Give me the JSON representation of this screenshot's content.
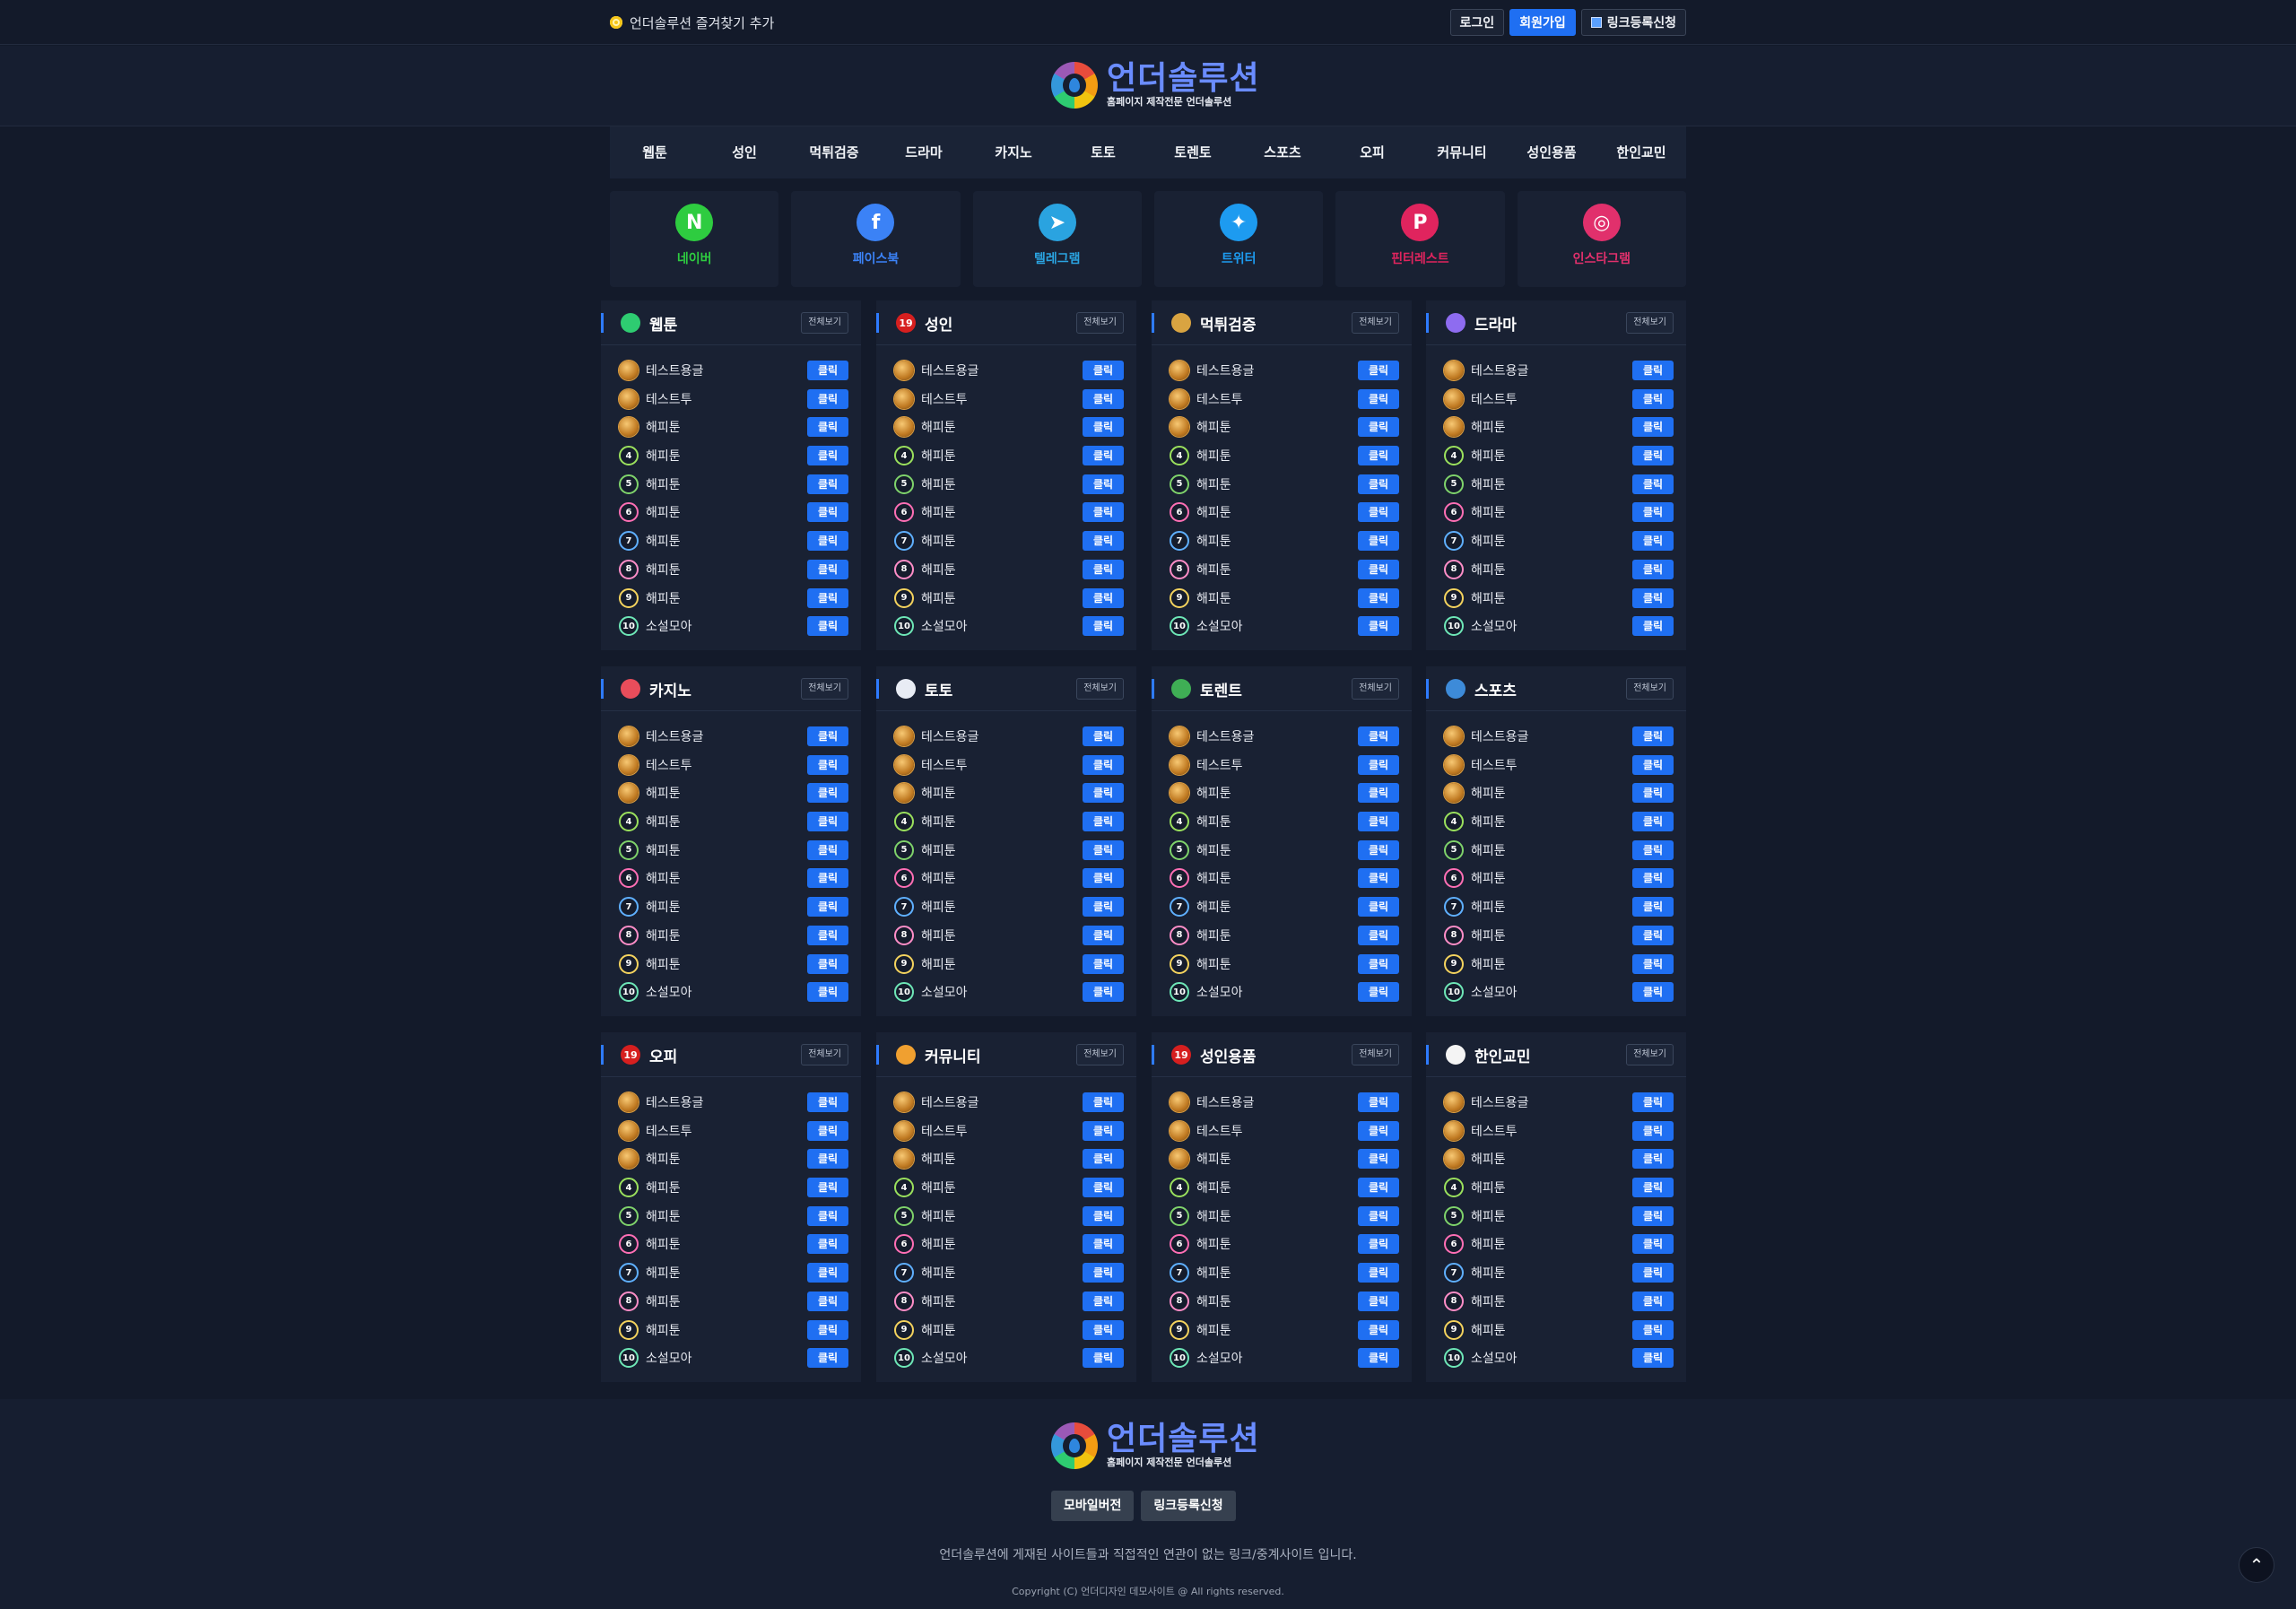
{
  "topbar": {
    "favorite_label": "언더솔루션 즐겨찾기 추가",
    "login_label": "로그인",
    "signup_label": "회원가입",
    "link_request_label": "링크등록신청"
  },
  "logo": {
    "name": "언더솔루션",
    "tagline": "홈페이지 제작전문 언더솔루션"
  },
  "nav": [
    "웹툰",
    "성인",
    "먹튀검증",
    "드라마",
    "카지노",
    "토토",
    "토렌토",
    "스포츠",
    "오피",
    "커뮤니티",
    "성인용품",
    "한인교민"
  ],
  "social": [
    {
      "label": "네이버",
      "color": "#2ecc40",
      "icon": "naver-icon"
    },
    {
      "label": "페이스북",
      "color": "#3b82f6",
      "icon": "facebook-icon"
    },
    {
      "label": "텔레그램",
      "color": "#2aa3e0",
      "icon": "telegram-icon"
    },
    {
      "label": "트위터",
      "color": "#1d9bf0",
      "icon": "twitter-icon"
    },
    {
      "label": "핀터레스트",
      "color": "#e0245e",
      "icon": "pinterest-icon"
    },
    {
      "label": "인스타그램",
      "color": "#e1306c",
      "icon": "instagram-icon"
    }
  ],
  "panel_more_label": "전체보기",
  "panel_click_label": "클릭",
  "panels": [
    {
      "title": "웹툰",
      "icon": "webtoon-icon",
      "badge": "",
      "badge_color": "#2ecc71"
    },
    {
      "title": "성인",
      "icon": "adult-19-icon",
      "badge": "19",
      "badge_color": "#d61f1f"
    },
    {
      "title": "먹튀검증",
      "icon": "shield-icon",
      "badge": "",
      "badge_color": "#d9a441"
    },
    {
      "title": "드라마",
      "icon": "drama-icon",
      "badge": "",
      "badge_color": "#8e6cf0"
    },
    {
      "title": "카지노",
      "icon": "casino-chip-icon",
      "badge": "",
      "badge_color": "#e84d5b"
    },
    {
      "title": "토토",
      "icon": "soccer-ball-icon",
      "badge": "",
      "badge_color": "#e8ecf4"
    },
    {
      "title": "토렌트",
      "icon": "torrent-icon",
      "badge": "",
      "badge_color": "#3fae55"
    },
    {
      "title": "스포츠",
      "icon": "sports-icon",
      "badge": "",
      "badge_color": "#3d8bd9"
    },
    {
      "title": "오피",
      "icon": "adult-19-icon",
      "badge": "19",
      "badge_color": "#d61f1f"
    },
    {
      "title": "커뮤니티",
      "icon": "community-icon",
      "badge": "",
      "badge_color": "#f0a030"
    },
    {
      "title": "성인용품",
      "icon": "adult-19-icon",
      "badge": "19",
      "badge_color": "#d61f1f"
    },
    {
      "title": "한인교민",
      "icon": "korea-flag-icon",
      "badge": "",
      "badge_color": "#f4f4f4"
    }
  ],
  "panel_rows": [
    {
      "rank": "",
      "name": "테스트용글"
    },
    {
      "rank": "",
      "name": "테스트투"
    },
    {
      "rank": "",
      "name": "해피툰"
    },
    {
      "rank": "4",
      "name": "해피툰"
    },
    {
      "rank": "5",
      "name": "해피툰"
    },
    {
      "rank": "6",
      "name": "해피툰"
    },
    {
      "rank": "7",
      "name": "해피툰"
    },
    {
      "rank": "8",
      "name": "해피툰"
    },
    {
      "rank": "9",
      "name": "해피툰"
    },
    {
      "rank": "10",
      "name": "소설모아"
    }
  ],
  "rank_ring_colors": [
    "#9be15d",
    "#7fd36b",
    "#ff6fb5",
    "#5fb0ff",
    "#ff8ec8",
    "#f4d35e",
    "#6ee7b7"
  ],
  "footer": {
    "mobile_label": "모바일버전",
    "link_request_label": "링크등록신청",
    "disclaimer": "언더솔루션에 게재된 사이트들과 직접적인 연관이 없는 링크/중계사이트 입니다.",
    "copyright": "Copyright (C) 언더디자인 데모사이트 @ All rights reserved."
  }
}
